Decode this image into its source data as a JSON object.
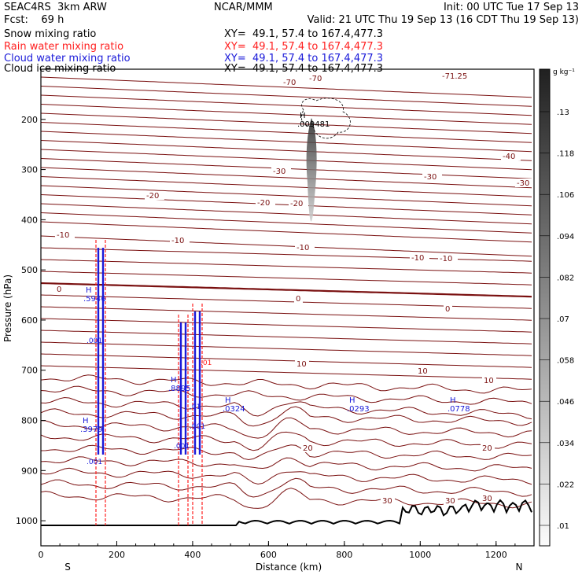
{
  "header": {
    "line1_left": "SEAC4RS  3km ARW",
    "line1_center": "NCAR/MMM",
    "line1_right": "Init: 00 UTC Tue 17 Sep 13",
    "line2_left": "Fcst:    69 h",
    "line2_right": "Valid: 21 UTC Thu 19 Sep 13 (16 CDT Thu 19 Sep 13)",
    "fields": [
      {
        "name": "Snow mixing ratio",
        "xy": "XY=  49.1, 57.4 to 167.4,477.3",
        "color": "#000000"
      },
      {
        "name": "Rain water mixing ratio",
        "xy": "XY=  49.1, 57.4 to 167.4,477.3",
        "color": "#ff2020"
      },
      {
        "name": "Cloud water mixing ratio",
        "xy": "XY=  49.1, 57.4 to 167.4,477.3",
        "color": "#1a1ad9"
      },
      {
        "name": "Cloud ice mixing ratio",
        "xy": "XY=  49.1, 57.4 to 167.4,477.3",
        "color": "#000000"
      }
    ]
  },
  "chart_data": {
    "type": "line",
    "xlabel": "Distance (km)",
    "ylabel": "Pressure (hPa)",
    "xlim": [
      0,
      1300
    ],
    "ylim": [
      1050,
      100
    ],
    "x_ticks": [
      0,
      200,
      400,
      600,
      800,
      1000,
      1200
    ],
    "y_ticks": [
      200,
      300,
      400,
      500,
      600,
      700,
      800,
      900,
      1000
    ],
    "x_end_labels": {
      "left": "S",
      "right": "N"
    },
    "colorbar": {
      "unit": "g kg⁻¹",
      "ticks": [
        ".01",
        ".022",
        ".034",
        ".046",
        ".058",
        ".07",
        ".082",
        ".094",
        ".106",
        ".118",
        ".13"
      ]
    },
    "temperature_labels": [
      "-71.25",
      "-70",
      "-70",
      "-40",
      "-30",
      "-30",
      "-30",
      "-20",
      "-20",
      "-20",
      "-10",
      "-10",
      "-10",
      "-10",
      "-10",
      "0",
      "0",
      "0",
      "10",
      "10",
      "10",
      "20",
      "20",
      "30",
      "30",
      "30"
    ],
    "maxima": [
      {
        "label": "H",
        "value": ".009481",
        "color": "#000000"
      },
      {
        "label": "H",
        "value": ".5946",
        "color": "#1a1ad9"
      },
      {
        "label": "H",
        "value": ".3979",
        "color": "#1a1ad9"
      },
      {
        "label": "H",
        "value": ".8895",
        "color": "#1a1ad9"
      },
      {
        "label": "H",
        "value": ".0324",
        "color": "#1a1ad9"
      },
      {
        "label": "H",
        "value": ".0293",
        "color": "#1a1ad9"
      },
      {
        "label": "H",
        "value": ".0778",
        "color": "#1a1ad9"
      }
    ],
    "small_labels": [
      ".001",
      ".001",
      ".001",
      ".01",
      ".01",
      ".001"
    ]
  }
}
